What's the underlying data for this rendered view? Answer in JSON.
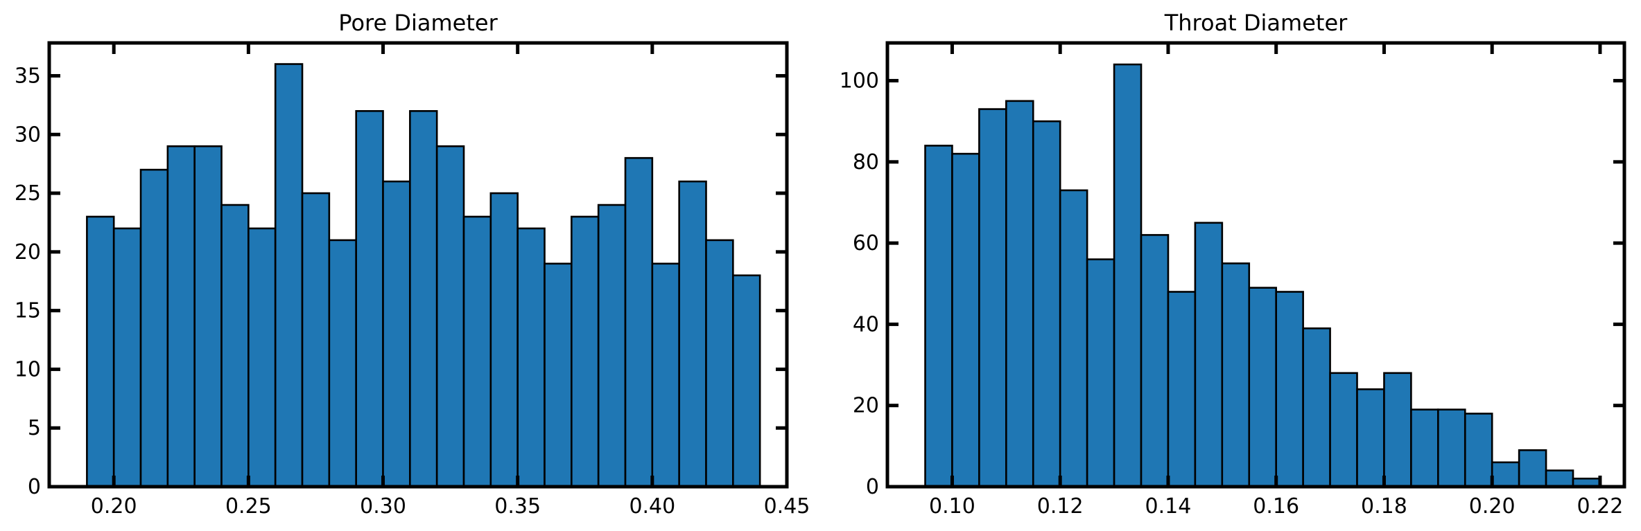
{
  "chart_data": [
    {
      "type": "bar",
      "title": "Pore Diameter",
      "xlabel": "",
      "ylabel": "",
      "xlim": [
        0.176,
        0.45
      ],
      "ylim": [
        0,
        37.8
      ],
      "xticks": [
        0.2,
        0.25,
        0.3,
        0.35,
        0.4,
        0.45
      ],
      "xtick_labels": [
        "0.20",
        "0.25",
        "0.30",
        "0.35",
        "0.40",
        "0.45"
      ],
      "yticks": [
        0,
        5,
        10,
        15,
        20,
        25,
        30,
        35
      ],
      "ytick_labels": [
        "0",
        "5",
        "10",
        "15",
        "20",
        "25",
        "30",
        "35"
      ],
      "bin_start": 0.19,
      "bin_width": 0.01,
      "values": [
        23,
        22,
        27,
        29,
        29,
        24,
        22,
        36,
        25,
        21,
        32,
        26,
        32,
        29,
        23,
        25,
        22,
        19,
        23,
        24,
        28,
        19,
        26,
        21,
        18
      ],
      "color": "#1f77b4",
      "edge_color": "#000000",
      "grid": false
    },
    {
      "type": "bar",
      "title": "Throat Diameter",
      "xlabel": "",
      "ylabel": "",
      "xlim": [
        0.088,
        0.2245
      ],
      "ylim": [
        0,
        109.3
      ],
      "xticks": [
        0.1,
        0.12,
        0.14,
        0.16,
        0.18,
        0.2,
        0.22
      ],
      "xtick_labels": [
        "0.10",
        "0.12",
        "0.14",
        "0.16",
        "0.18",
        "0.20",
        "0.22"
      ],
      "yticks": [
        0,
        20,
        40,
        60,
        80,
        100
      ],
      "ytick_labels": [
        "0",
        "20",
        "40",
        "60",
        "80",
        "100"
      ],
      "bin_start": 0.095,
      "bin_width": 0.005,
      "values": [
        84,
        82,
        93,
        95,
        90,
        73,
        56,
        104,
        62,
        48,
        65,
        55,
        49,
        48,
        39,
        28,
        24,
        28,
        19,
        19,
        18,
        6,
        9,
        4,
        2
      ],
      "color": "#1f77b4",
      "edge_color": "#000000",
      "grid": false
    }
  ]
}
